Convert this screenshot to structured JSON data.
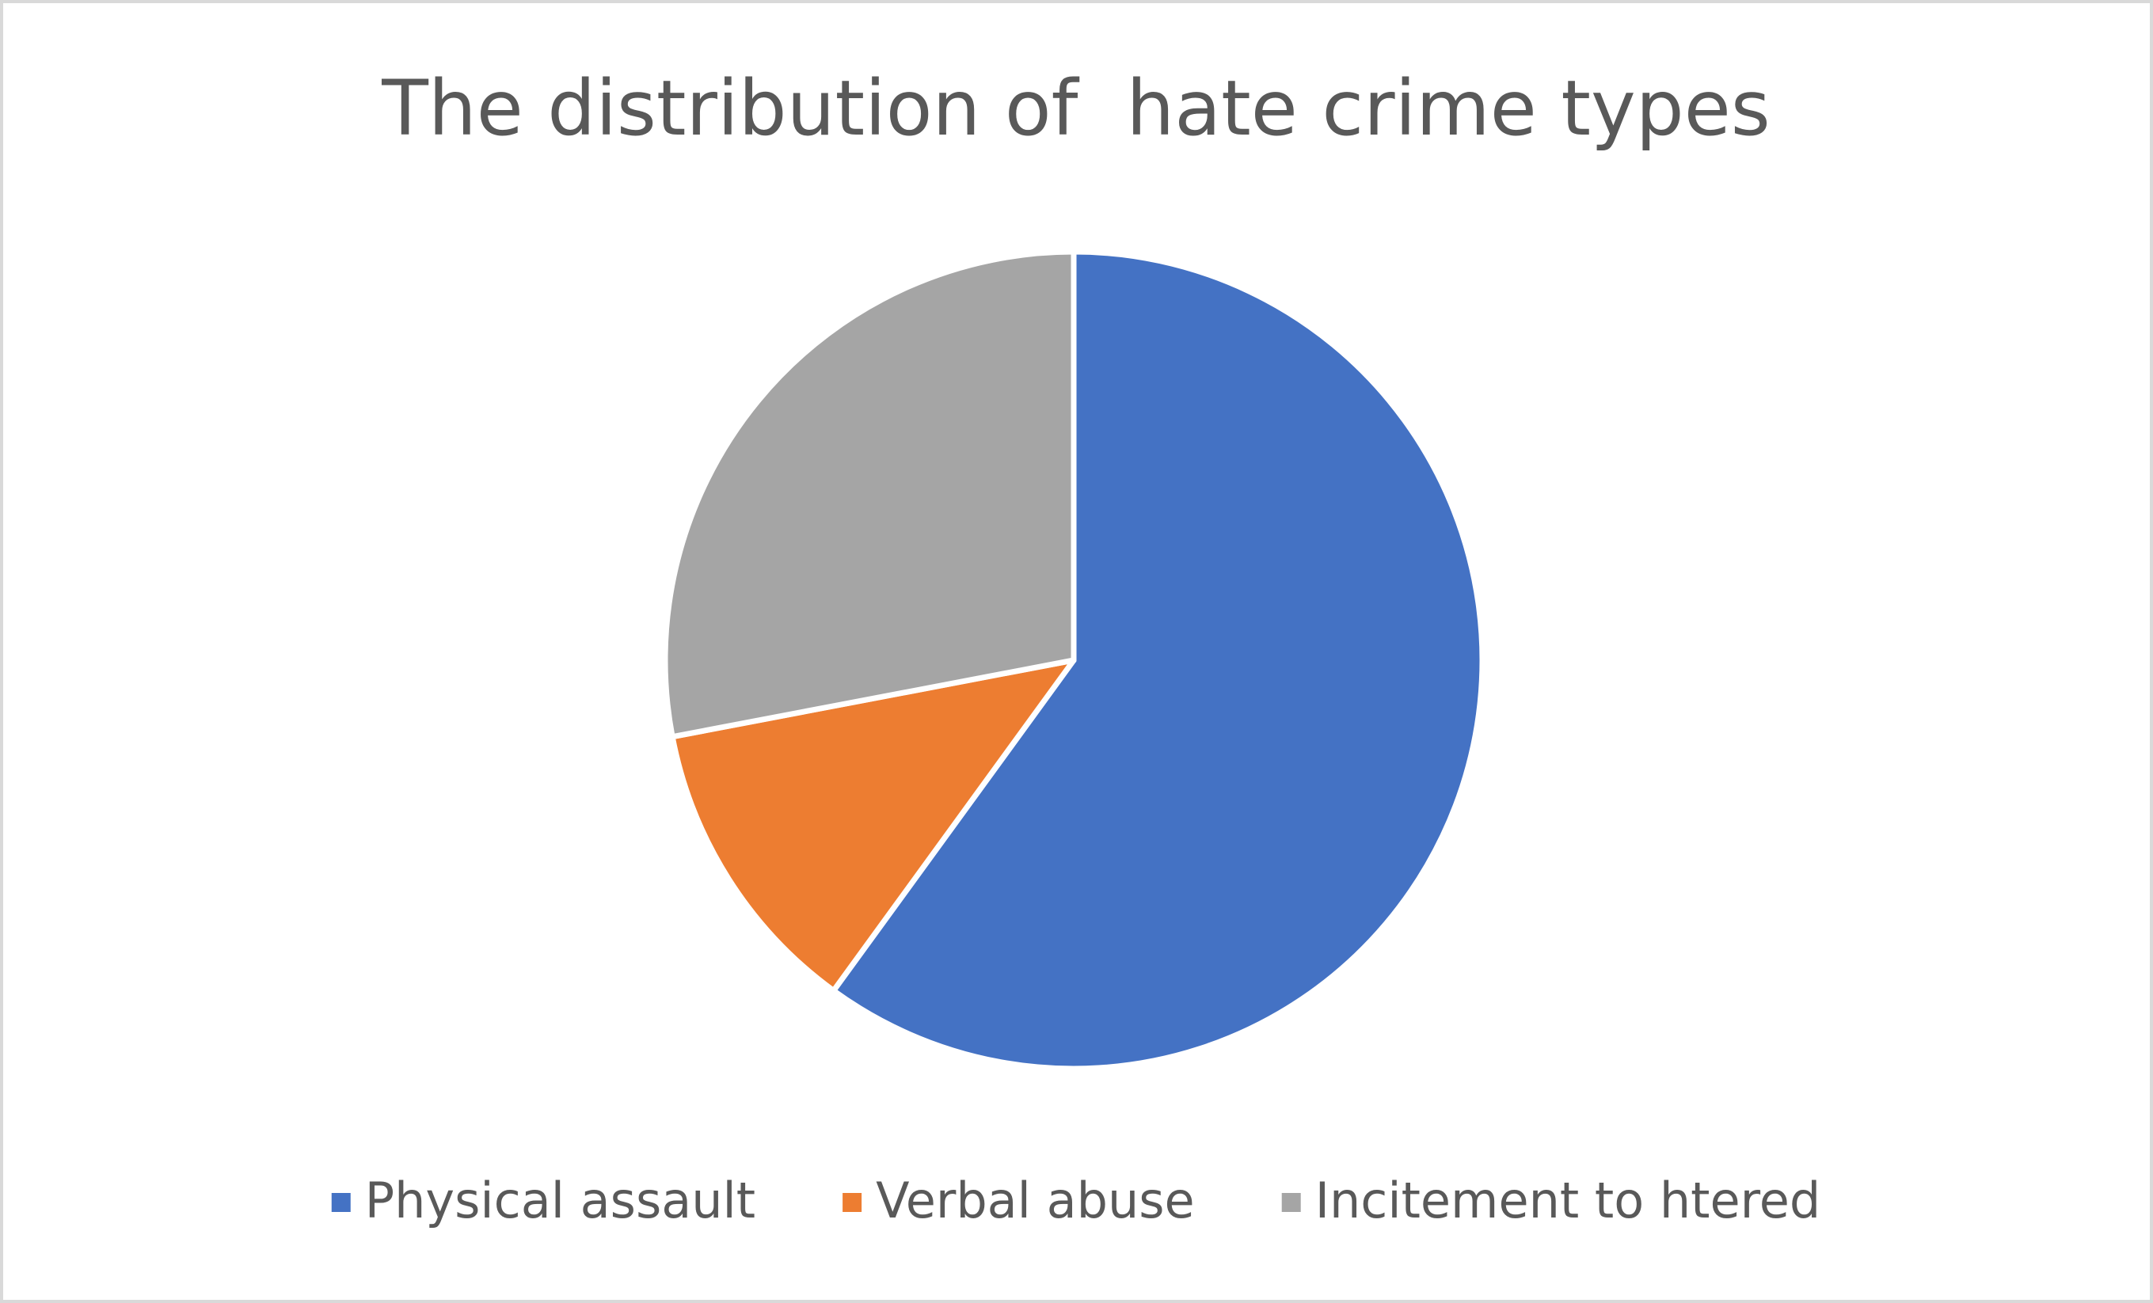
{
  "chart_data": {
    "type": "pie",
    "title": "The distribution of  hate crime types",
    "categories": [
      "Physical assault",
      "Verbal abuse",
      "Incitement to htered"
    ],
    "values": [
      60,
      12,
      28
    ],
    "colors": [
      "#4472c4",
      "#ed7d31",
      "#a5a5a5"
    ],
    "legend": "bottom"
  }
}
